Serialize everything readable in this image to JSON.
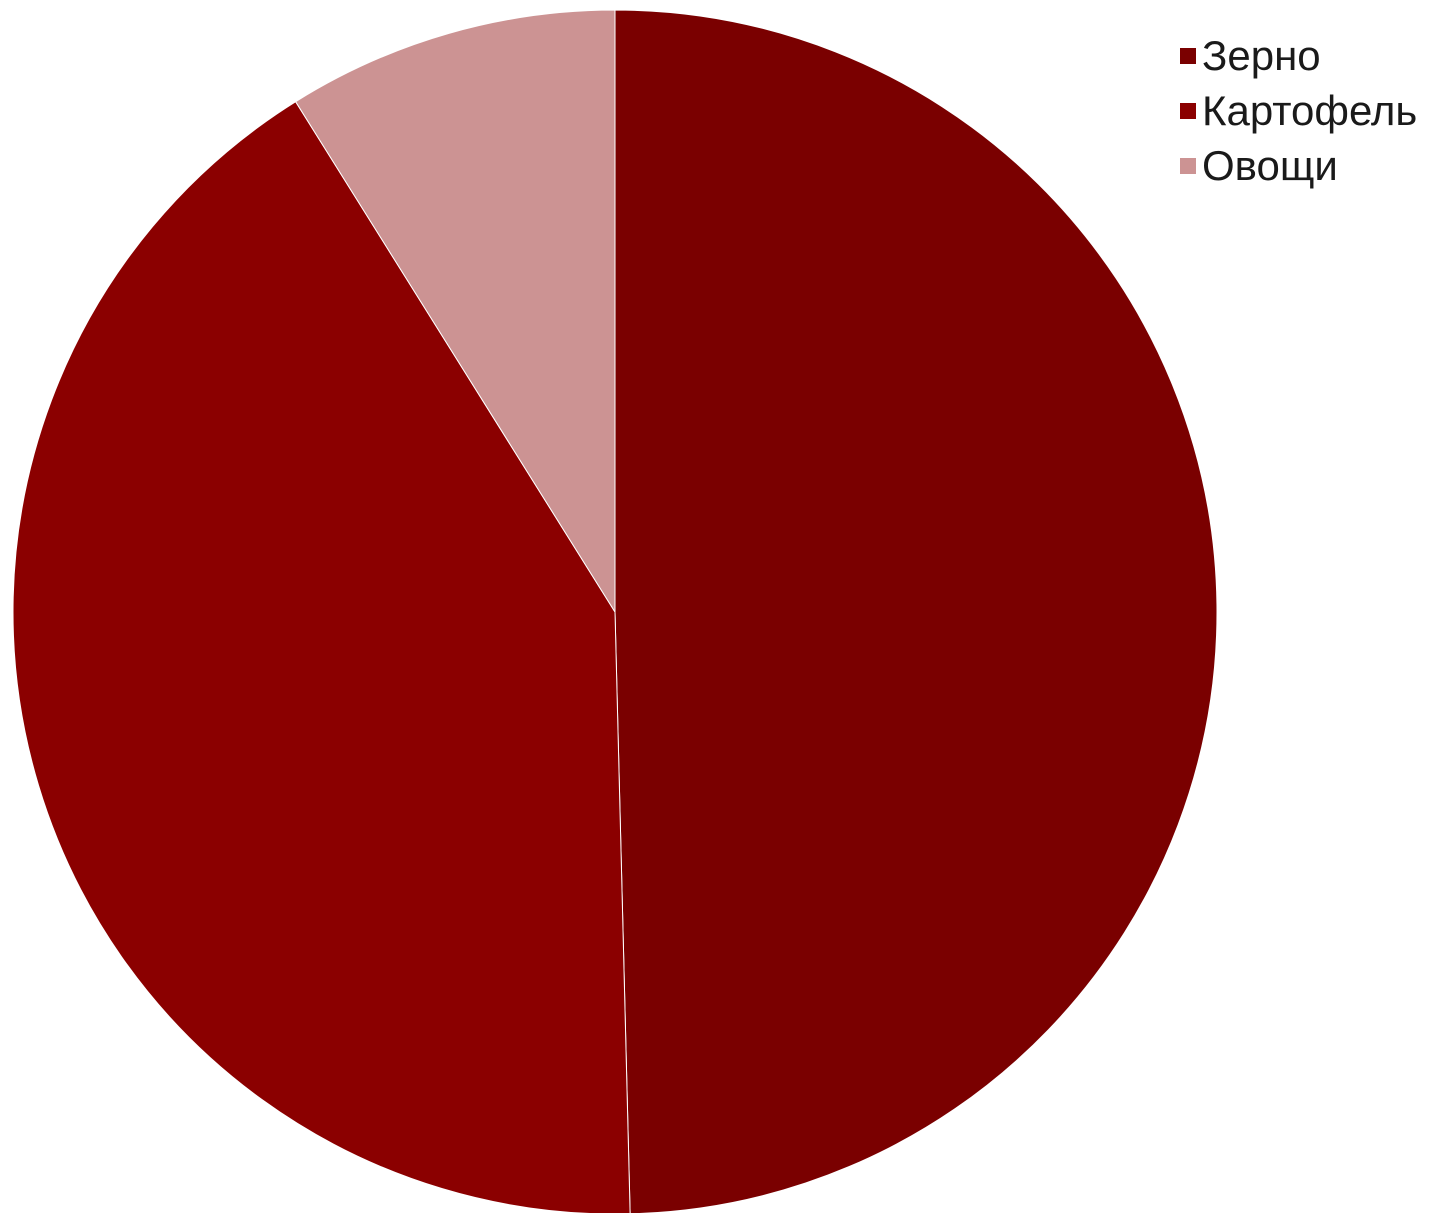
{
  "chart_data": {
    "type": "pie",
    "title": "",
    "legend_position": "top-right",
    "slices": [
      {
        "label": "Зерно",
        "value": 49.6,
        "color": "#7a0000"
      },
      {
        "label": "Картофель",
        "value": 41.5,
        "color": "#8b0000"
      },
      {
        "label": "Овощи",
        "value": 8.9,
        "color": "#cc9393"
      }
    ],
    "start_direction": "top",
    "direction": "clockwise"
  }
}
